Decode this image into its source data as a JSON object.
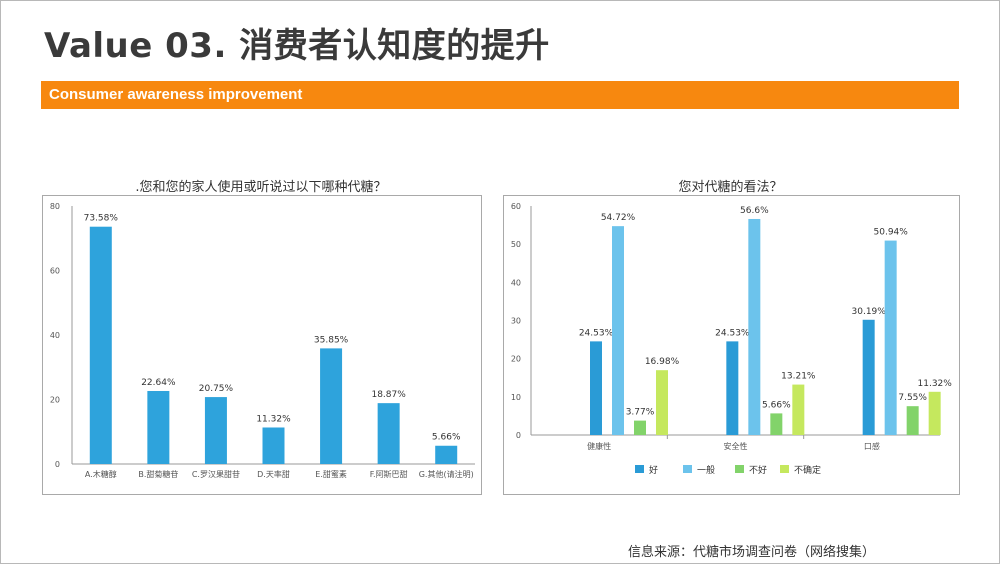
{
  "header": {
    "title": "Value 03. 消费者认知度的提升",
    "banner": "Consumer awareness improvement"
  },
  "colors": {
    "accent": "#f7880f",
    "bar_left": "#2ea3dc",
    "good": "#2a9bd6",
    "neutral": "#6cc3ec",
    "bad": "#82d36a",
    "unsure": "#c5e85e"
  },
  "chart_data": [
    {
      "type": "bar",
      "title": ".您和您的家人使用或听说过以下哪种代糖？",
      "categories": [
        "A.木糖醇",
        "B.甜菊糖苷",
        "C.罗汉果甜苷",
        "D.天率甜",
        "E.甜蜜素",
        "F.阿斯巴甜",
        "G.其他(请注明)"
      ],
      "values": [
        73.58,
        22.64,
        20.75,
        11.32,
        35.85,
        18.87,
        5.66
      ],
      "labels": [
        "73.58%",
        "22.64%",
        "20.75%",
        "11.32%",
        "35.85%",
        "18.87%",
        "5.66%"
      ],
      "yticks": [
        0,
        20,
        40,
        60,
        80
      ],
      "ylim": [
        0,
        80
      ],
      "grid": false
    },
    {
      "type": "bar",
      "title": "您对代糖的看法？",
      "categories": [
        "健康性",
        "安全性",
        "口感"
      ],
      "series": [
        {
          "name": "好",
          "values": [
            24.53,
            24.53,
            30.19
          ],
          "labels": [
            "24.53%",
            "24.53%",
            "30.19%"
          ]
        },
        {
          "name": "一般",
          "values": [
            54.72,
            56.6,
            50.94
          ],
          "labels": [
            "54.72%",
            "56.6%",
            "50.94%"
          ]
        },
        {
          "name": "不好",
          "values": [
            3.77,
            5.66,
            7.55
          ],
          "labels": [
            "3.77%",
            "5.66%",
            "7.55%"
          ]
        },
        {
          "name": "不确定",
          "values": [
            16.98,
            13.21,
            11.32
          ],
          "labels": [
            "16.98%",
            "13.21%",
            "11.32%"
          ]
        }
      ],
      "yticks": [
        0,
        10,
        20,
        30,
        40,
        50,
        60
      ],
      "ylim": [
        0,
        60
      ],
      "legend": "bottom",
      "grid": false
    }
  ],
  "footer": {
    "source": "信息来源：代糖市场调查问卷（网络搜集）"
  }
}
